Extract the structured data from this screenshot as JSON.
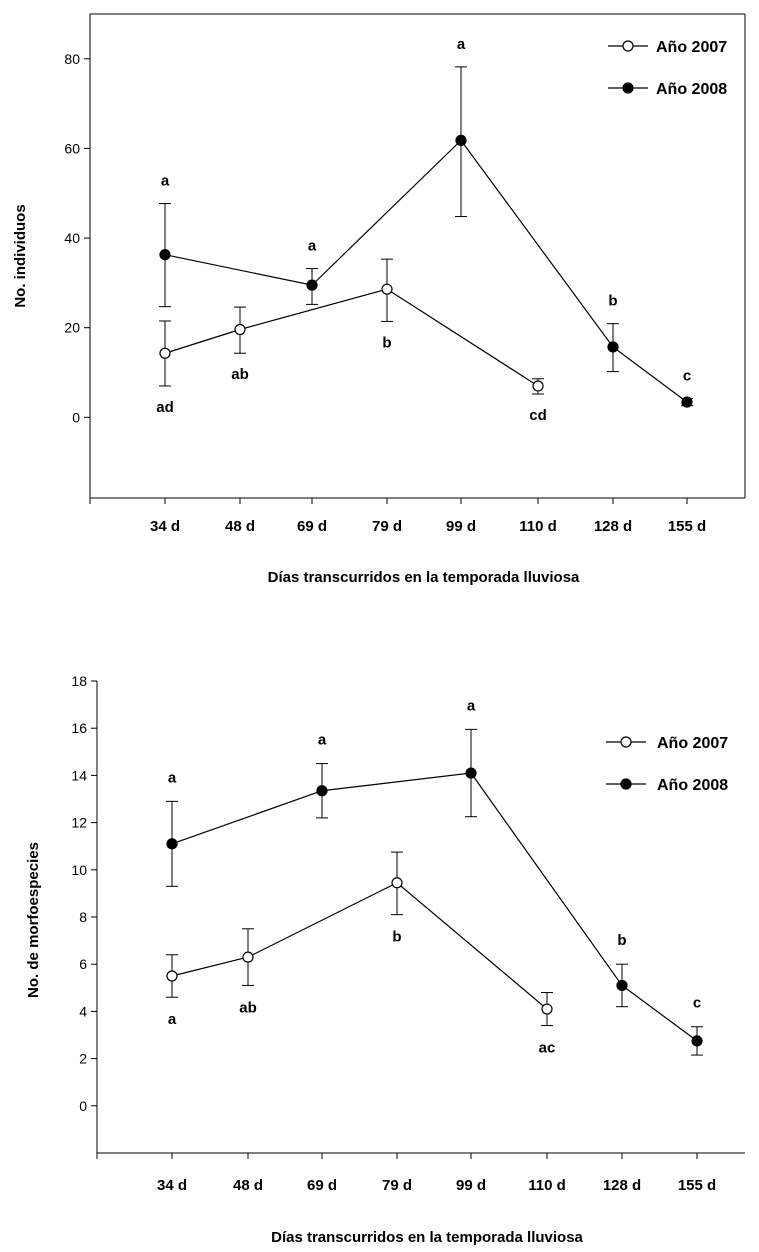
{
  "chart_data": [
    {
      "type": "line",
      "title": "",
      "xlabel": "Días transcurridos en la temporada lluviosa",
      "ylabel": "No. individuos",
      "categories": [
        "34 d",
        "48 d",
        "69 d",
        "79 d",
        "99 d",
        "110 d",
        "128 d",
        "155 d"
      ],
      "ylim": [
        -18,
        90
      ],
      "yticks": [
        0,
        20,
        40,
        60,
        80
      ],
      "legend_position": "top-right",
      "series": [
        {
          "name": "Año 2007",
          "marker": "open-circle",
          "points": [
            {
              "x": "34 d",
              "y": 14.3,
              "err_low": 7.0,
              "err_high": 21.5,
              "label": "ad",
              "label_pos": "below"
            },
            {
              "x": "48 d",
              "y": 19.6,
              "err_low": 14.3,
              "err_high": 24.6,
              "label": "ab",
              "label_pos": "below"
            },
            {
              "x": "79 d",
              "y": 28.6,
              "err_low": 21.4,
              "err_high": 35.3,
              "label": "b",
              "label_pos": "below"
            },
            {
              "x": "110 d",
              "y": 7.0,
              "err_low": 5.2,
              "err_high": 8.6,
              "label": "cd",
              "label_pos": "below"
            }
          ]
        },
        {
          "name": "Año 2008",
          "marker": "filled-circle",
          "points": [
            {
              "x": "34 d",
              "y": 36.3,
              "err_low": 24.7,
              "err_high": 47.7,
              "label": "a",
              "label_pos": "above"
            },
            {
              "x": "69 d",
              "y": 29.5,
              "err_low": 25.2,
              "err_high": 33.2,
              "label": "a",
              "label_pos": "above"
            },
            {
              "x": "99 d",
              "y": 61.8,
              "err_low": 44.8,
              "err_high": 78.2,
              "label": "a",
              "label_pos": "above"
            },
            {
              "x": "128 d",
              "y": 15.7,
              "err_low": 10.2,
              "err_high": 20.9,
              "label": "b",
              "label_pos": "above"
            },
            {
              "x": "155 d",
              "y": 3.4,
              "err_low": 2.6,
              "err_high": 4.2,
              "label": "c",
              "label_pos": "above"
            }
          ]
        }
      ]
    },
    {
      "type": "line",
      "title": "",
      "xlabel": "Días transcurridos en la temporada lluviosa",
      "ylabel": "No. de morfoespecies",
      "categories": [
        "34 d",
        "48 d",
        "69 d",
        "79 d",
        "99 d",
        "110 d",
        "128 d",
        "155 d"
      ],
      "ylim": [
        -2,
        18
      ],
      "yticks": [
        0,
        2,
        4,
        6,
        8,
        10,
        12,
        14,
        16,
        18
      ],
      "legend_position": "top-right",
      "series": [
        {
          "name": "Año 2007",
          "marker": "open-circle",
          "points": [
            {
              "x": "34 d",
              "y": 5.5,
              "err_low": 4.6,
              "err_high": 6.4,
              "label": "a",
              "label_pos": "below"
            },
            {
              "x": "48 d",
              "y": 6.3,
              "err_low": 5.1,
              "err_high": 7.5,
              "label": "ab",
              "label_pos": "below"
            },
            {
              "x": "79 d",
              "y": 9.45,
              "err_low": 8.1,
              "err_high": 10.75,
              "label": "b",
              "label_pos": "below"
            },
            {
              "x": "110 d",
              "y": 4.1,
              "err_low": 3.4,
              "err_high": 4.8,
              "label": "ac",
              "label_pos": "below"
            }
          ]
        },
        {
          "name": "Año 2008",
          "marker": "filled-circle",
          "points": [
            {
              "x": "34 d",
              "y": 11.1,
              "err_low": 9.3,
              "err_high": 12.9,
              "label": "a",
              "label_pos": "above"
            },
            {
              "x": "69 d",
              "y": 13.35,
              "err_low": 12.2,
              "err_high": 14.5,
              "label": "a",
              "label_pos": "above"
            },
            {
              "x": "99 d",
              "y": 14.1,
              "err_low": 12.25,
              "err_high": 15.95,
              "label": "a",
              "label_pos": "above"
            },
            {
              "x": "128 d",
              "y": 5.1,
              "err_low": 4.2,
              "err_high": 6.0,
              "label": "b",
              "label_pos": "above"
            },
            {
              "x": "155 d",
              "y": 2.75,
              "err_low": 2.15,
              "err_high": 3.35,
              "label": "c",
              "label_pos": "above"
            }
          ]
        }
      ]
    }
  ]
}
